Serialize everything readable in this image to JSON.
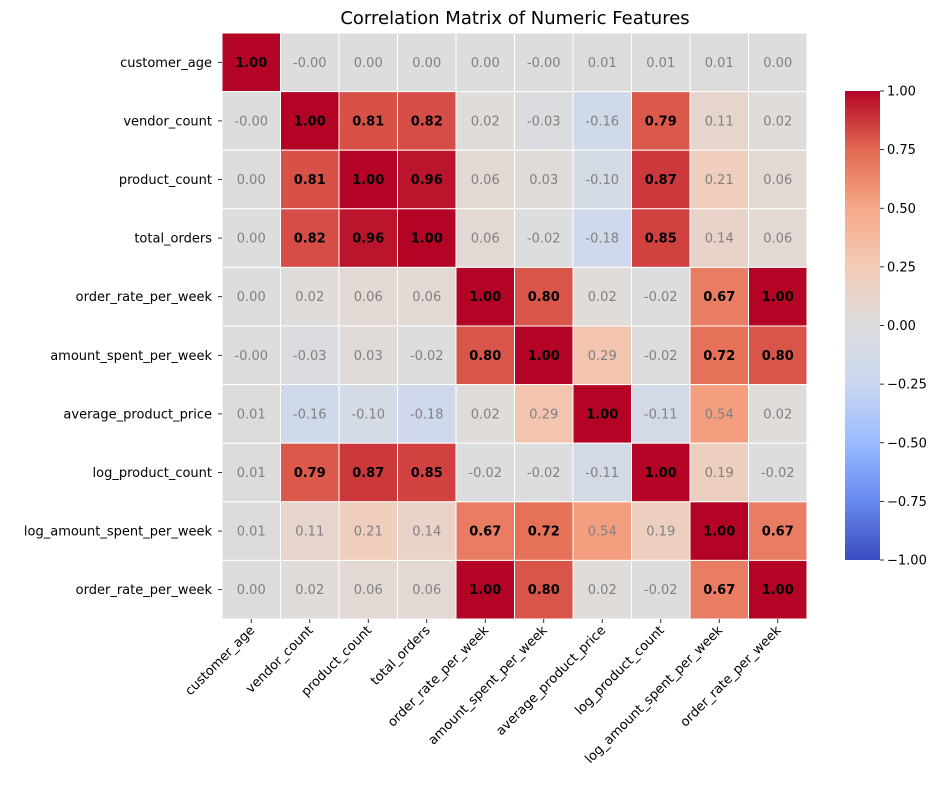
{
  "chart_data": {
    "type": "heatmap",
    "title": "Correlation Matrix of Numeric Features",
    "xlabel": "",
    "ylabel": "",
    "row_labels": [
      "customer_age",
      "vendor_count",
      "product_count",
      "total_orders",
      "order_rate_per_week",
      "amount_spent_per_week",
      "average_product_price",
      "log_product_count",
      "log_amount_spent_per_week",
      "order_rate_per_week"
    ],
    "col_labels": [
      "customer_age",
      "vendor_count",
      "product_count",
      "total_orders",
      "order_rate_per_week",
      "amount_spent_per_week",
      "average_product_price",
      "log_product_count",
      "log_amount_spent_per_week",
      "order_rate_per_week"
    ],
    "values": [
      [
        1.0,
        -0.0,
        0.0,
        0.0,
        0.0,
        -0.0,
        0.01,
        0.01,
        0.01,
        0.0
      ],
      [
        -0.0,
        1.0,
        0.81,
        0.82,
        0.02,
        -0.03,
        -0.16,
        0.79,
        0.11,
        0.02
      ],
      [
        0.0,
        0.81,
        1.0,
        0.96,
        0.06,
        0.03,
        -0.1,
        0.87,
        0.21,
        0.06
      ],
      [
        0.0,
        0.82,
        0.96,
        1.0,
        0.06,
        -0.02,
        -0.18,
        0.85,
        0.14,
        0.06
      ],
      [
        0.0,
        0.02,
        0.06,
        0.06,
        1.0,
        0.8,
        0.02,
        -0.02,
        0.67,
        1.0
      ],
      [
        -0.0,
        -0.03,
        0.03,
        -0.02,
        0.8,
        1.0,
        0.29,
        -0.02,
        0.72,
        0.8
      ],
      [
        0.01,
        -0.16,
        -0.1,
        -0.18,
        0.02,
        0.29,
        1.0,
        -0.11,
        0.54,
        0.02
      ],
      [
        0.01,
        0.79,
        0.87,
        0.85,
        -0.02,
        -0.02,
        -0.11,
        1.0,
        0.19,
        -0.02
      ],
      [
        0.01,
        0.11,
        0.21,
        0.14,
        0.67,
        0.72,
        0.54,
        0.19,
        1.0,
        0.67
      ],
      [
        0.0,
        0.02,
        0.06,
        0.06,
        1.0,
        0.8,
        0.02,
        -0.02,
        0.67,
        1.0
      ]
    ],
    "annotations": [
      [
        "1.00",
        "-0.00",
        "0.00",
        "0.00",
        "0.00",
        "-0.00",
        "0.01",
        "0.01",
        "0.01",
        "0.00"
      ],
      [
        "-0.00",
        "1.00",
        "0.81",
        "0.82",
        "0.02",
        "-0.03",
        "-0.16",
        "0.79",
        "0.11",
        "0.02"
      ],
      [
        "0.00",
        "0.81",
        "1.00",
        "0.96",
        "0.06",
        "0.03",
        "-0.10",
        "0.87",
        "0.21",
        "0.06"
      ],
      [
        "0.00",
        "0.82",
        "0.96",
        "1.00",
        "0.06",
        "-0.02",
        "-0.18",
        "0.85",
        "0.14",
        "0.06"
      ],
      [
        "0.00",
        "0.02",
        "0.06",
        "0.06",
        "1.00",
        "0.80",
        "0.02",
        "-0.02",
        "0.67",
        "1.00"
      ],
      [
        "-0.00",
        "-0.03",
        "0.03",
        "-0.02",
        "0.80",
        "1.00",
        "0.29",
        "-0.02",
        "0.72",
        "0.80"
      ],
      [
        "0.01",
        "-0.16",
        "-0.10",
        "-0.18",
        "0.02",
        "0.29",
        "1.00",
        "-0.11",
        "0.54",
        "0.02"
      ],
      [
        "0.01",
        "0.79",
        "0.87",
        "0.85",
        "-0.02",
        "-0.02",
        "-0.11",
        "1.00",
        "0.19",
        "-0.02"
      ],
      [
        "0.01",
        "0.11",
        "0.21",
        "0.14",
        "0.67",
        "0.72",
        "0.54",
        "0.19",
        "1.00",
        "0.67"
      ],
      [
        "0.00",
        "0.02",
        "0.06",
        "0.06",
        "1.00",
        "0.80",
        "0.02",
        "-0.02",
        "0.67",
        "1.00"
      ]
    ],
    "bold_threshold": 0.6,
    "colormap": "coolwarm",
    "colormap_stops": [
      "#3b4cc0",
      "#6788ee",
      "#9abbff",
      "#c9d7f0",
      "#dddddd",
      "#f2cbb7",
      "#f7a889",
      "#e26952",
      "#b40426"
    ],
    "annotation_color_strong": "#000000",
    "annotation_color_weak": "#808080",
    "cell_border_color": "#ffffff",
    "vmin": -1.0,
    "vmax": 1.0,
    "colorbar": {
      "ticks": [
        1.0,
        0.75,
        0.5,
        0.25,
        0.0,
        -0.25,
        -0.5,
        -0.75,
        -1.0
      ],
      "tick_labels": [
        "1.00",
        "0.75",
        "0.50",
        "0.25",
        "0.00",
        "−0.25",
        "−0.50",
        "−0.75",
        "−1.00"
      ],
      "placement": "right"
    },
    "grid": false
  }
}
